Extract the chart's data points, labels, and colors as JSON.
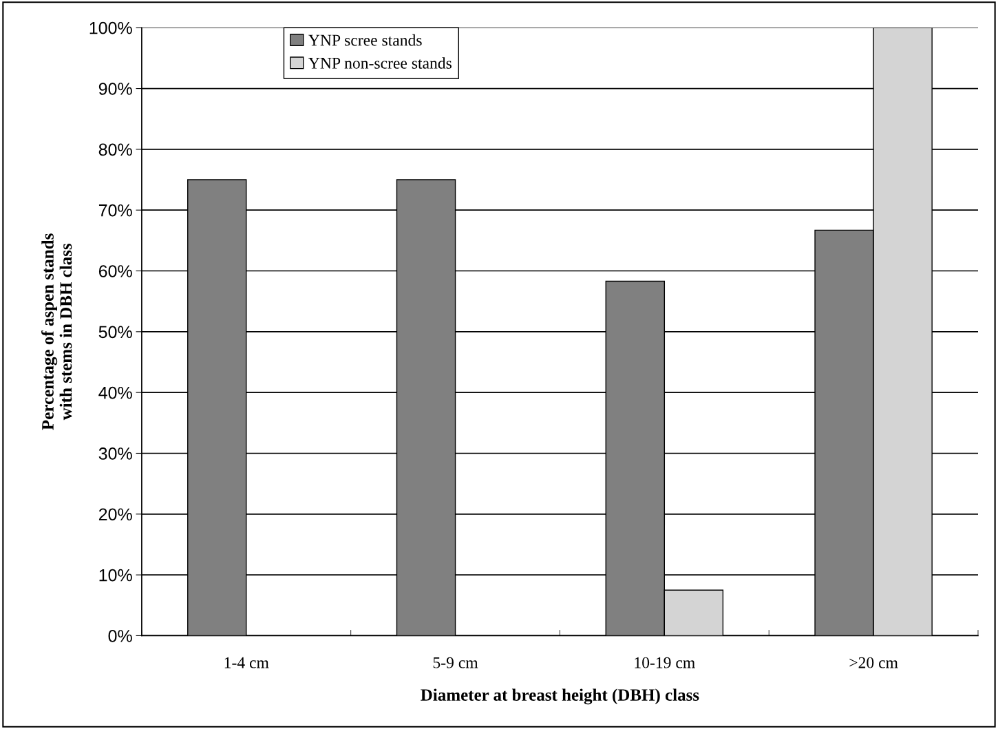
{
  "chart_data": {
    "type": "bar",
    "xlabel": "Diameter at breast height (DBH) class",
    "ylabel": "Percentage of aspen stands\nwith stems in DBH class",
    "categories": [
      "1-4 cm",
      "5-9 cm",
      "10-19 cm",
      ">20 cm"
    ],
    "series": [
      {
        "name": "YNP scree stands",
        "color": "#808080",
        "values": [
          75,
          75,
          58.3,
          66.7
        ]
      },
      {
        "name": "YNP non-scree stands",
        "color": "#d4d4d4",
        "values": [
          null,
          null,
          7.5,
          100
        ]
      }
    ],
    "ylim": [
      0,
      100
    ],
    "yticks": [
      {
        "value": 0,
        "label": "0%"
      },
      {
        "value": 10,
        "label": "10%"
      },
      {
        "value": 20,
        "label": "20%"
      },
      {
        "value": 30,
        "label": "30%"
      },
      {
        "value": 40,
        "label": "40%"
      },
      {
        "value": 50,
        "label": "50%"
      },
      {
        "value": 60,
        "label": "60%"
      },
      {
        "value": 70,
        "label": "70%"
      },
      {
        "value": 80,
        "label": "80%"
      },
      {
        "value": 90,
        "label": "90%"
      },
      {
        "value": 100,
        "label": "100%"
      }
    ],
    "grid": "y",
    "legend": "top left"
  }
}
